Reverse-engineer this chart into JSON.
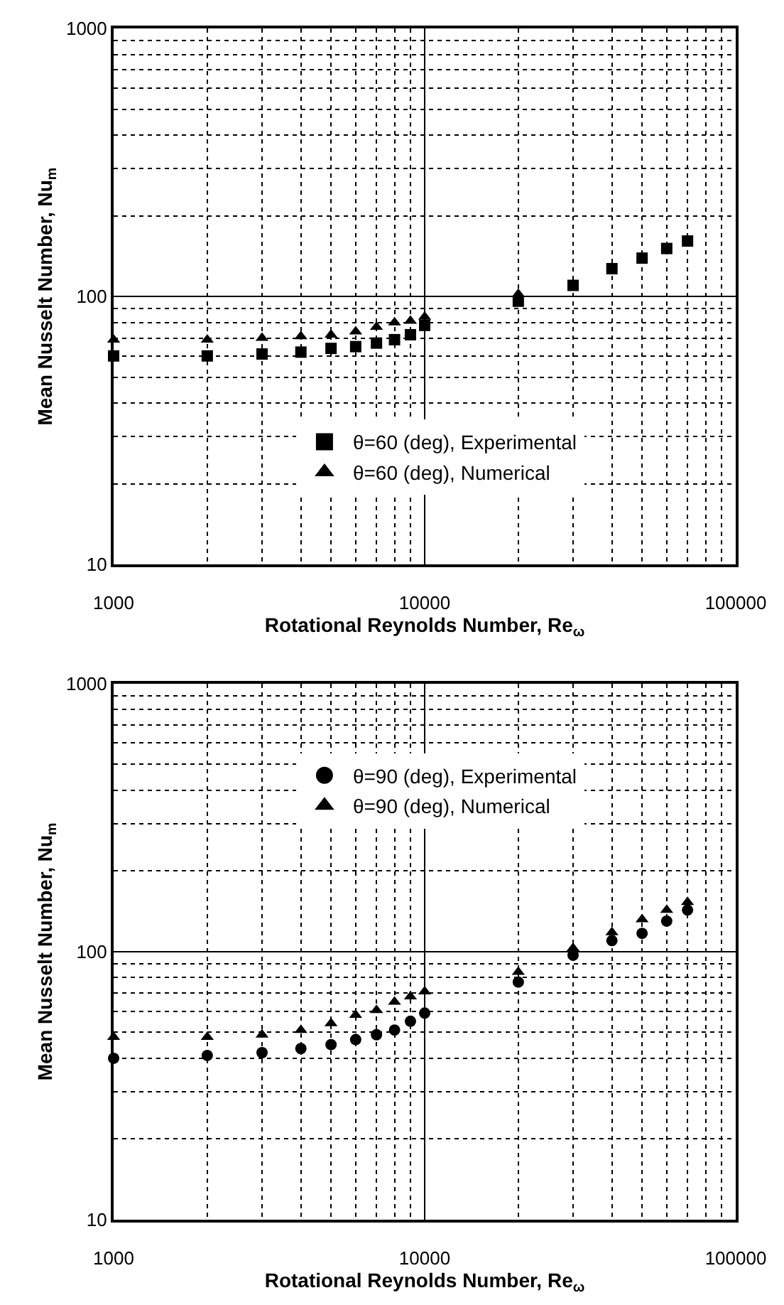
{
  "chart_data": [
    {
      "type": "scatter",
      "xlabel": "Rotational Reynolds Number, Re$_{ω}$",
      "ylabel": "Mean Nusselt Number, Nu$_{m}$",
      "log": "xy",
      "grid": true,
      "legend": "bottom",
      "x": [
        1000,
        2000,
        3000,
        4000,
        5000,
        6000,
        7000,
        8000,
        9000,
        10000,
        20000,
        30000,
        40000,
        50000,
        60000,
        70000
      ],
      "xlim": [
        1000,
        100000
      ],
      "xticks": [
        1000,
        10000,
        100000
      ],
      "ylim": [
        10,
        1000
      ],
      "yticks": [
        10,
        100,
        1000
      ],
      "series": [
        {
          "name": "θ=60 (deg), Experimental",
          "color": "#000000",
          "marker": "square",
          "values": [
            60,
            60,
            61,
            62,
            64,
            65,
            67,
            69,
            72,
            78,
            96,
            110,
            127,
            139,
            151,
            161
          ]
        },
        {
          "name": "θ=60 (deg), Numerical",
          "color": "#000000",
          "marker": "triangle",
          "values": [
            69,
            69,
            70,
            71,
            72,
            74,
            77,
            80,
            81,
            84,
            102,
            null,
            null,
            null,
            null,
            null
          ]
        }
      ]
    },
    {
      "type": "scatter",
      "xlabel": "Rotational Reynolds Number, Re$_{ω}$",
      "ylabel": "Mean Nusselt Number, Nu$_{m}$",
      "log": "xy",
      "grid": true,
      "legend": "top",
      "x": [
        1000,
        2000,
        3000,
        4000,
        5000,
        6000,
        7000,
        8000,
        9000,
        10000,
        20000,
        30000,
        40000,
        50000,
        60000,
        70000
      ],
      "xlim": [
        1000,
        100000
      ],
      "xticks": [
        1000,
        10000,
        100000
      ],
      "ylim": [
        10,
        1000
      ],
      "yticks": [
        10,
        100,
        1000
      ],
      "series": [
        {
          "name": "θ=90 (deg), Experimental",
          "color": "#000000",
          "marker": "circle",
          "values": [
            40,
            41,
            42,
            43.5,
            45,
            47,
            49,
            51,
            55,
            59,
            77,
            97,
            110,
            117,
            130,
            143
          ]
        },
        {
          "name": "θ=90 (deg), Numerical",
          "color": "#000000",
          "marker": "triangle",
          "values": [
            48,
            48,
            49,
            51,
            54,
            58,
            60.5,
            65,
            68,
            71,
            84,
            103,
            118,
            132,
            143,
            153
          ]
        }
      ]
    }
  ]
}
